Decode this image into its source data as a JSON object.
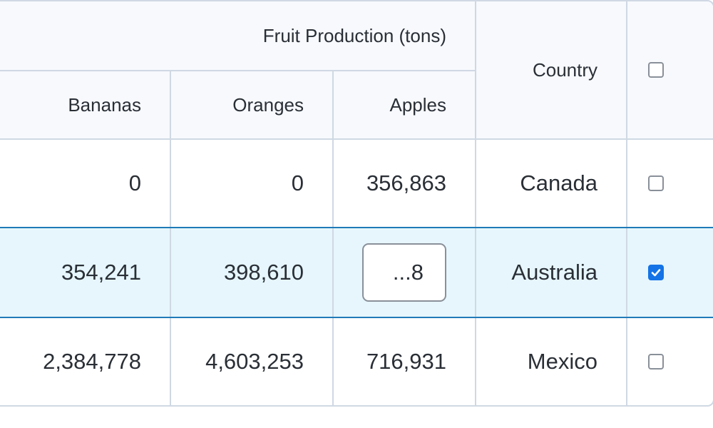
{
  "header": {
    "group_label": "Fruit Production (tons)",
    "columns": [
      "Bananas",
      "Oranges",
      "Apples"
    ],
    "country_label": "Country",
    "select_all_checked": false
  },
  "rows": [
    {
      "bananas": "0",
      "oranges": "0",
      "apples": "356,863",
      "country": "Canada",
      "checked": false,
      "selected": false
    },
    {
      "bananas": "354,241",
      "oranges": "398,610",
      "apples": "...8",
      "country": "Australia",
      "checked": true,
      "selected": true,
      "editing_column": "apples"
    },
    {
      "bananas": "2,384,778",
      "oranges": "4,603,253",
      "apples": "716,931",
      "country": "Mexico",
      "checked": false,
      "selected": false
    }
  ],
  "colors": {
    "border": "#cfd8e3",
    "header_bg": "#f7f9fd",
    "selected_row_bg": "#e6f6fc",
    "selected_row_border": "#1f7ab8",
    "checkbox_checked": "#1473e6"
  }
}
